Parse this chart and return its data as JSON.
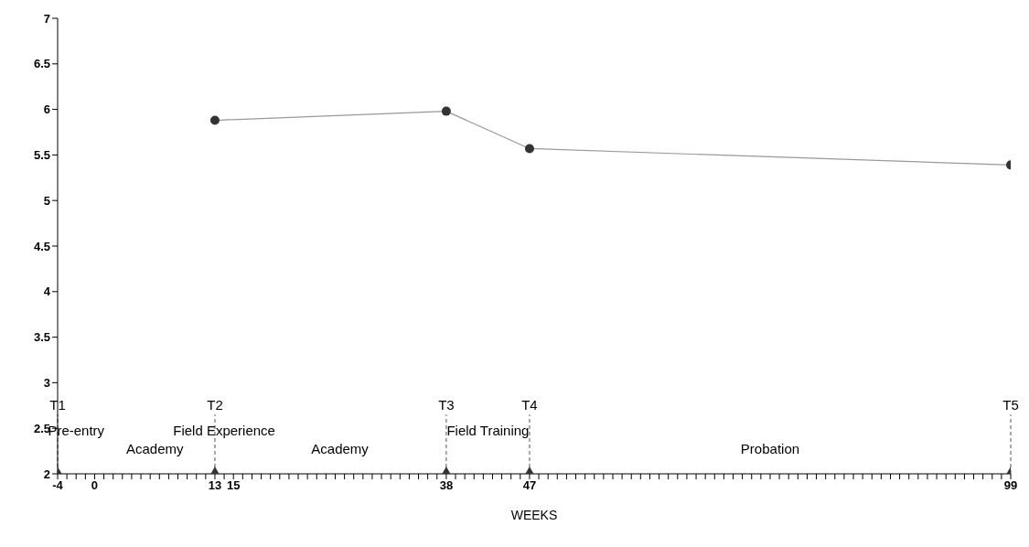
{
  "chart_data": {
    "type": "line",
    "xlabel": "WEEKS",
    "xlim": [
      -4,
      99
    ],
    "ylim": [
      2,
      7
    ],
    "yticks": [
      2,
      2.5,
      3,
      3.5,
      4,
      4.5,
      5,
      5.5,
      6,
      6.5,
      7
    ],
    "xticks": [
      -4,
      {
        "value": -3,
        "label": null
      },
      {
        "value": -2,
        "label": null
      },
      {
        "value": -1,
        "label": null
      },
      0,
      {
        "value": 1,
        "label": null
      },
      {
        "value": 2,
        "label": null
      },
      {
        "value": 3,
        "label": null
      },
      {
        "value": 4,
        "label": null
      },
      {
        "value": 5,
        "label": null
      },
      {
        "value": 6,
        "label": null
      },
      {
        "value": 7,
        "label": null
      },
      {
        "value": 8,
        "label": null
      },
      {
        "value": 9,
        "label": null
      },
      {
        "value": 10,
        "label": null
      },
      {
        "value": 11,
        "label": null
      },
      {
        "value": 12,
        "label": null
      },
      13,
      {
        "value": 14,
        "label": null
      },
      15,
      {
        "value": 16,
        "label": null
      },
      {
        "value": 17,
        "label": null
      },
      {
        "value": 18,
        "label": null
      },
      {
        "value": 19,
        "label": null
      },
      {
        "value": 20,
        "label": null
      },
      {
        "value": 21,
        "label": null
      },
      {
        "value": 22,
        "label": null
      },
      {
        "value": 23,
        "label": null
      },
      {
        "value": 24,
        "label": null
      },
      {
        "value": 25,
        "label": null
      },
      {
        "value": 26,
        "label": null
      },
      {
        "value": 27,
        "label": null
      },
      {
        "value": 28,
        "label": null
      },
      {
        "value": 29,
        "label": null
      },
      {
        "value": 30,
        "label": null
      },
      {
        "value": 31,
        "label": null
      },
      {
        "value": 32,
        "label": null
      },
      {
        "value": 33,
        "label": null
      },
      {
        "value": 34,
        "label": null
      },
      {
        "value": 35,
        "label": null
      },
      {
        "value": 36,
        "label": null
      },
      {
        "value": 37,
        "label": null
      },
      38,
      {
        "value": 39,
        "label": null
      },
      {
        "value": 40,
        "label": null
      },
      {
        "value": 41,
        "label": null
      },
      {
        "value": 42,
        "label": null
      },
      {
        "value": 43,
        "label": null
      },
      {
        "value": 44,
        "label": null
      },
      {
        "value": 45,
        "label": null
      },
      {
        "value": 46,
        "label": null
      },
      47,
      {
        "value": 48,
        "label": null
      },
      {
        "value": 49,
        "label": null
      },
      {
        "value": 50,
        "label": null
      },
      {
        "value": 51,
        "label": null
      },
      {
        "value": 52,
        "label": null
      },
      {
        "value": 53,
        "label": null
      },
      {
        "value": 54,
        "label": null
      },
      {
        "value": 55,
        "label": null
      },
      {
        "value": 56,
        "label": null
      },
      {
        "value": 57,
        "label": null
      },
      {
        "value": 58,
        "label": null
      },
      {
        "value": 59,
        "label": null
      },
      {
        "value": 60,
        "label": null
      },
      {
        "value": 61,
        "label": null
      },
      {
        "value": 62,
        "label": null
      },
      {
        "value": 63,
        "label": null
      },
      {
        "value": 64,
        "label": null
      },
      {
        "value": 65,
        "label": null
      },
      {
        "value": 66,
        "label": null
      },
      {
        "value": 67,
        "label": null
      },
      {
        "value": 68,
        "label": null
      },
      {
        "value": 69,
        "label": null
      },
      {
        "value": 70,
        "label": null
      },
      {
        "value": 71,
        "label": null
      },
      {
        "value": 72,
        "label": null
      },
      {
        "value": 73,
        "label": null
      },
      {
        "value": 74,
        "label": null
      },
      {
        "value": 75,
        "label": null
      },
      {
        "value": 76,
        "label": null
      },
      {
        "value": 77,
        "label": null
      },
      {
        "value": 78,
        "label": null
      },
      {
        "value": 79,
        "label": null
      },
      {
        "value": 80,
        "label": null
      },
      {
        "value": 81,
        "label": null
      },
      {
        "value": 82,
        "label": null
      },
      {
        "value": 83,
        "label": null
      },
      {
        "value": 84,
        "label": null
      },
      {
        "value": 85,
        "label": null
      },
      {
        "value": 86,
        "label": null
      },
      {
        "value": 87,
        "label": null
      },
      {
        "value": 88,
        "label": null
      },
      {
        "value": 89,
        "label": null
      },
      {
        "value": 90,
        "label": null
      },
      {
        "value": 91,
        "label": null
      },
      {
        "value": 92,
        "label": null
      },
      {
        "value": 93,
        "label": null
      },
      {
        "value": 94,
        "label": null
      },
      {
        "value": 95,
        "label": null
      },
      {
        "value": 96,
        "label": null
      },
      {
        "value": 97,
        "label": null
      },
      {
        "value": 98,
        "label": null
      },
      99
    ],
    "grid": false,
    "legend": false,
    "series": [
      {
        "color": "#999999",
        "marker": "circle",
        "x": [
          13,
          38,
          47,
          99
        ],
        "values": [
          5.88,
          5.98,
          5.57,
          5.39
        ]
      },
      {
        "type": "scatter",
        "color": "#333333",
        "marker": "triangle",
        "x": [
          -4,
          13,
          38,
          47,
          99
        ],
        "values": [
          2,
          2,
          2,
          2,
          2
        ]
      }
    ],
    "ref_lines": [
      {
        "axis": "x",
        "value": -4,
        "label": "T1",
        "line_style": "dashed"
      },
      {
        "axis": "x",
        "value": 13,
        "label": "T2",
        "line_style": "dashed"
      },
      {
        "axis": "x",
        "value": 38,
        "label": "T3",
        "line_style": "dashed"
      },
      {
        "axis": "x",
        "value": 47,
        "label": "T4",
        "line_style": "dashed"
      },
      {
        "axis": "x",
        "value": 99,
        "label": "T5",
        "line_style": "dashed"
      }
    ],
    "annotations": [
      "Pre-entry",
      "Academy",
      "Field Experience",
      "Academy",
      "Field Training",
      "Probation"
    ]
  }
}
